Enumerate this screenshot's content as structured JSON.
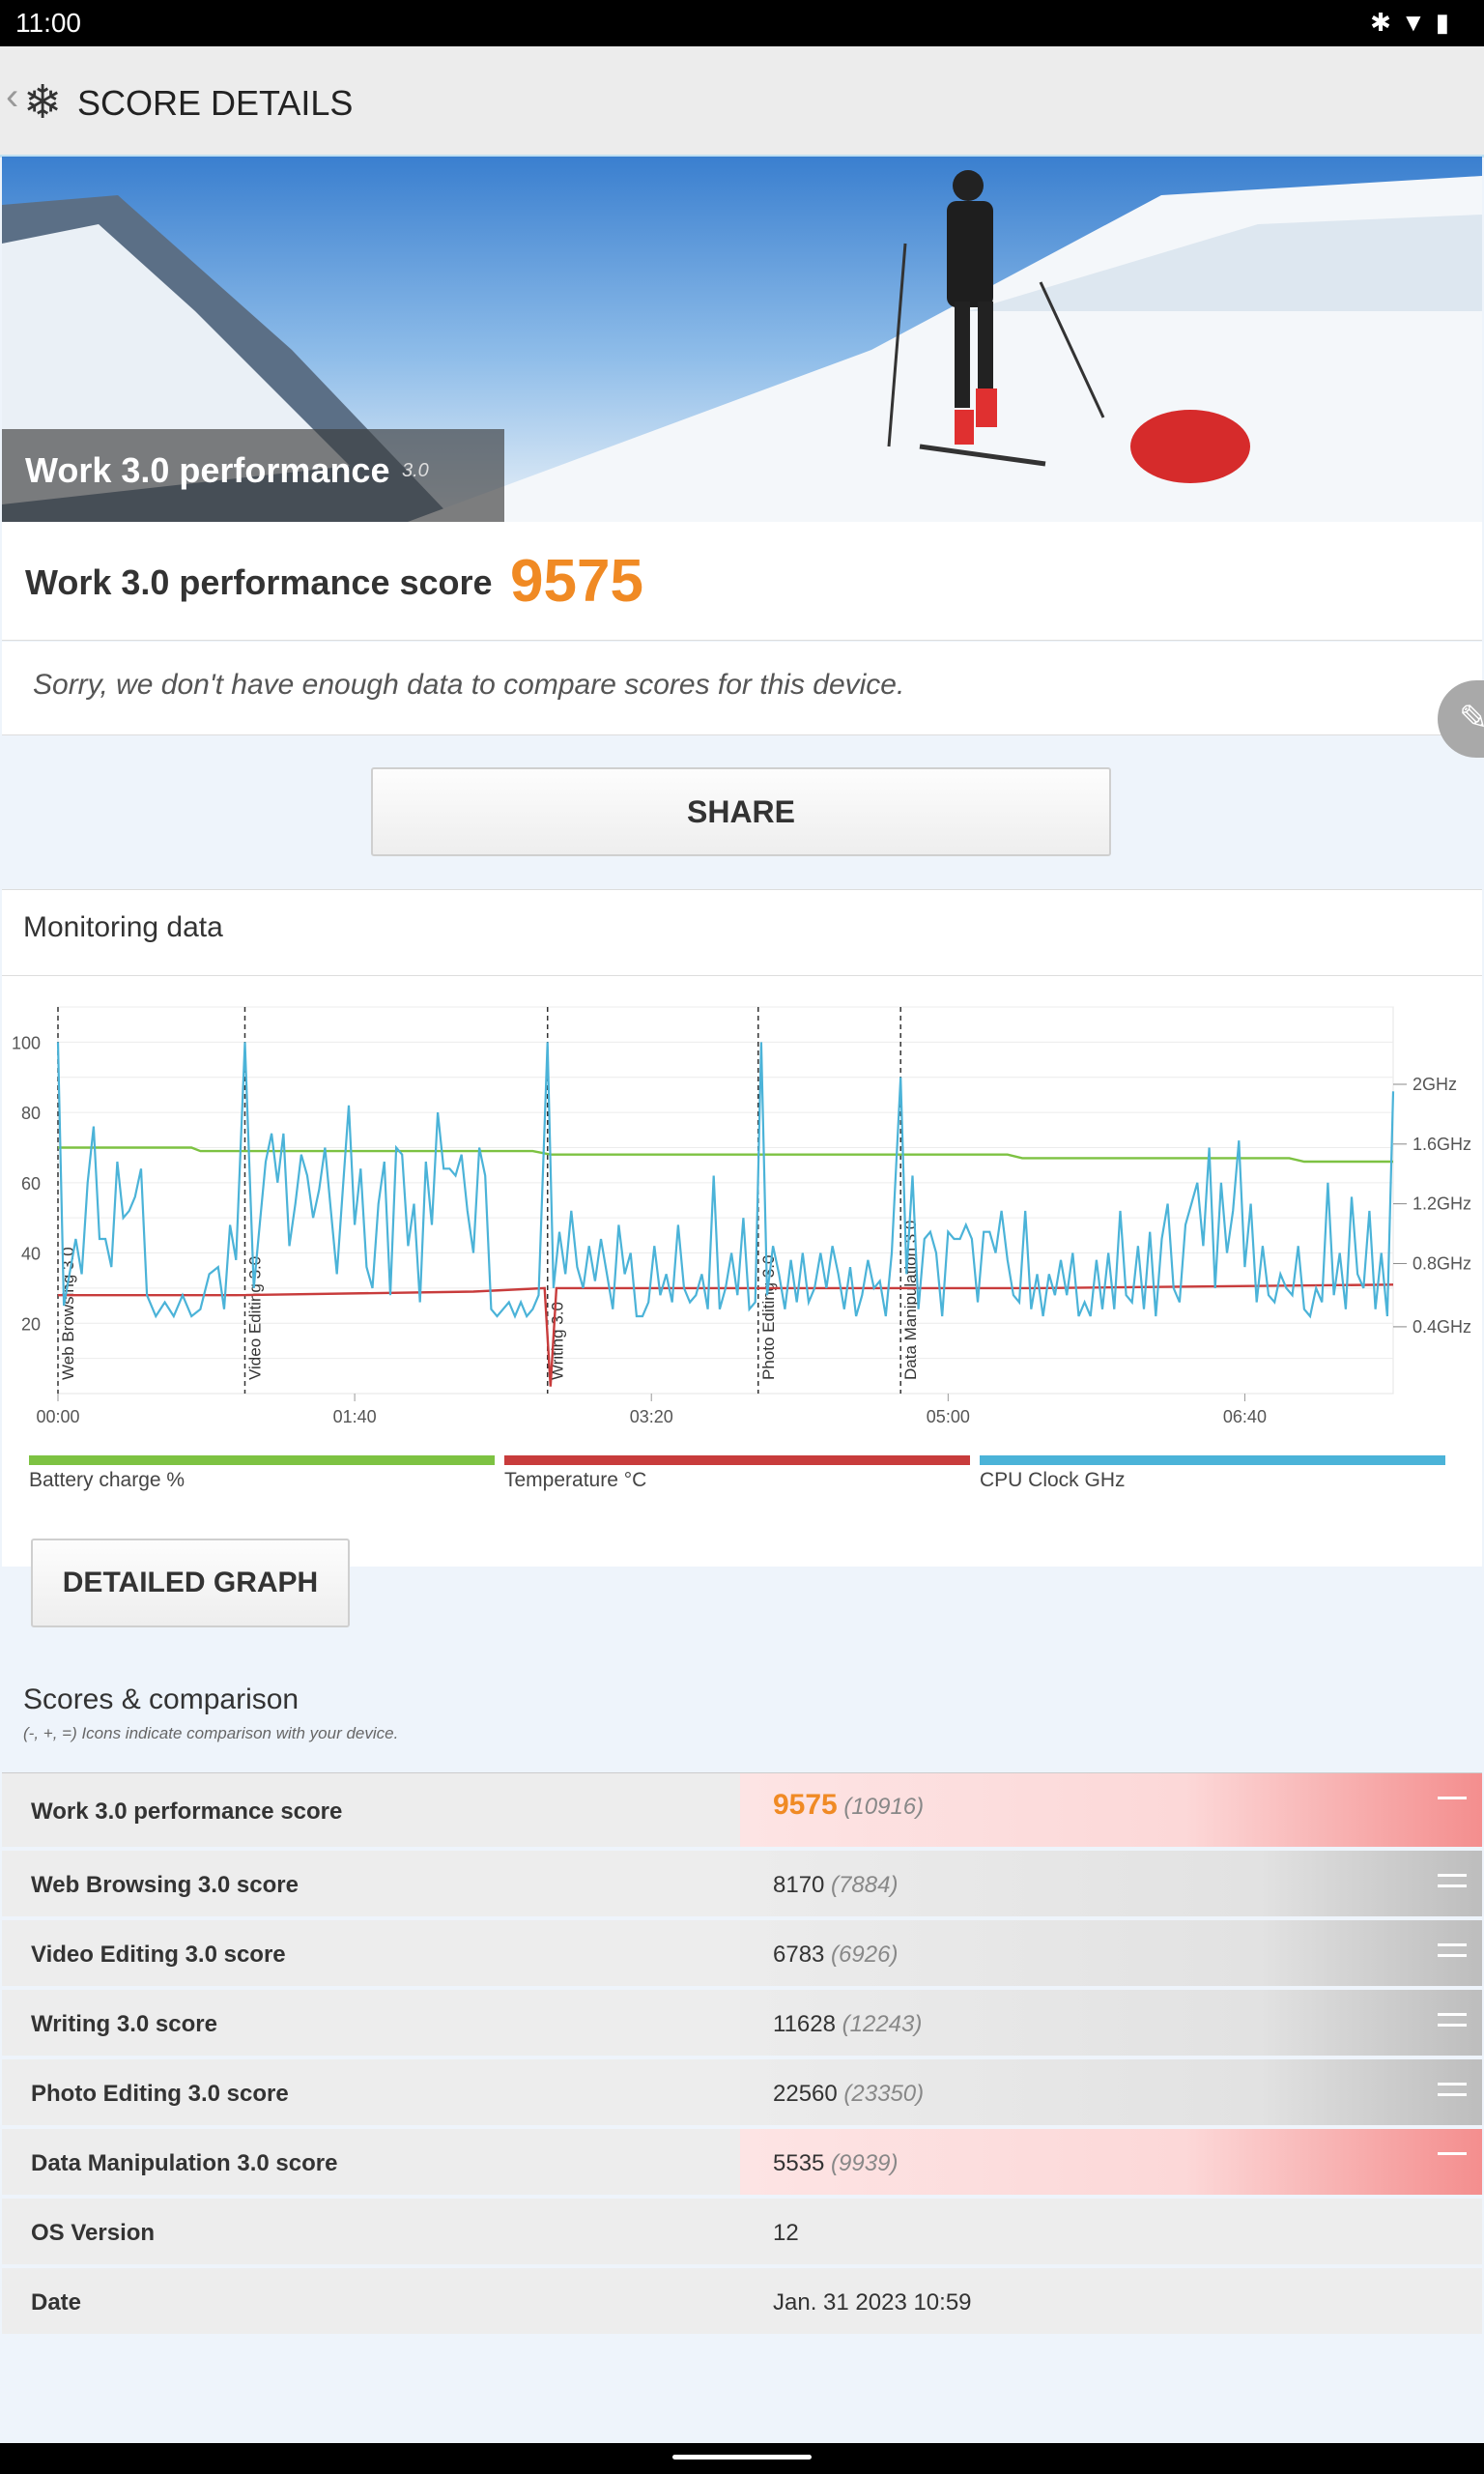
{
  "status": {
    "time": "11:00",
    "icons": [
      "bluetooth-icon",
      "wifi-icon",
      "battery-icon"
    ]
  },
  "appbar": {
    "title": "SCORE DETAILS"
  },
  "hero": {
    "title": "Work 3.0 performance",
    "version": "3.0"
  },
  "score": {
    "label": "Work 3.0 performance score",
    "value": "9575"
  },
  "notice": "Sorry, we don't have enough data to compare scores for this device.",
  "share_label": "SHARE",
  "monitoring": {
    "title": "Monitoring data"
  },
  "chart_data": {
    "type": "line",
    "x_ticks": [
      "00:00",
      "01:40",
      "03:20",
      "05:00",
      "06:40"
    ],
    "y_left_ticks": [
      "100",
      "80",
      "60",
      "40",
      "20"
    ],
    "y_right_ticks": [
      "2GHz",
      "1.6GHz",
      "1.2GHz",
      "0.8GHz",
      "0.4GHz"
    ],
    "phase_markers": [
      {
        "label": "Web Browsing 3.0",
        "t": 0
      },
      {
        "label": "Video Editing 3.0",
        "t": 63
      },
      {
        "label": "Writing 3.0",
        "t": 165
      },
      {
        "label": "Photo Editing 3.0",
        "t": 236
      },
      {
        "label": "Data Manipulation 3.0",
        "t": 284
      }
    ],
    "xlim": [
      0,
      450
    ],
    "ylim": [
      0,
      110
    ],
    "series": [
      {
        "name": "Battery charge %",
        "color": "#7dc242",
        "points": [
          [
            0,
            70
          ],
          [
            45,
            70
          ],
          [
            48,
            69
          ],
          [
            160,
            69
          ],
          [
            166,
            68
          ],
          [
            320,
            68
          ],
          [
            325,
            67
          ],
          [
            415,
            67
          ],
          [
            420,
            66
          ],
          [
            450,
            66
          ]
        ]
      },
      {
        "name": "Temperature °C",
        "color": "#c83c3c",
        "points": [
          [
            0,
            28
          ],
          [
            60,
            28
          ],
          [
            140,
            29
          ],
          [
            164,
            30
          ],
          [
            166,
            2
          ],
          [
            168,
            30
          ],
          [
            250,
            30
          ],
          [
            330,
            30
          ],
          [
            450,
            31
          ]
        ]
      },
      {
        "name": "CPU Clock GHz",
        "color": "#4bb3d8",
        "points": [
          [
            0,
            100
          ],
          [
            2,
            25
          ],
          [
            6,
            44
          ],
          [
            8,
            34
          ],
          [
            10,
            60
          ],
          [
            12,
            76
          ],
          [
            14,
            44
          ],
          [
            16,
            44
          ],
          [
            18,
            36
          ],
          [
            20,
            66
          ],
          [
            22,
            50
          ],
          [
            24,
            52
          ],
          [
            26,
            56
          ],
          [
            28,
            64
          ],
          [
            30,
            28
          ],
          [
            33,
            22
          ],
          [
            36,
            26
          ],
          [
            39,
            22
          ],
          [
            42,
            28
          ],
          [
            45,
            22
          ],
          [
            48,
            24
          ],
          [
            51,
            34
          ],
          [
            54,
            36
          ],
          [
            56,
            24
          ],
          [
            58,
            48
          ],
          [
            60,
            38
          ],
          [
            63,
            100
          ],
          [
            66,
            30
          ],
          [
            68,
            48
          ],
          [
            70,
            66
          ],
          [
            72,
            74
          ],
          [
            74,
            60
          ],
          [
            76,
            74
          ],
          [
            78,
            42
          ],
          [
            80,
            54
          ],
          [
            82,
            68
          ],
          [
            84,
            62
          ],
          [
            86,
            50
          ],
          [
            88,
            58
          ],
          [
            90,
            70
          ],
          [
            92,
            52
          ],
          [
            94,
            34
          ],
          [
            96,
            58
          ],
          [
            98,
            82
          ],
          [
            100,
            48
          ],
          [
            102,
            64
          ],
          [
            104,
            36
          ],
          [
            106,
            30
          ],
          [
            108,
            54
          ],
          [
            110,
            66
          ],
          [
            112,
            28
          ],
          [
            114,
            70
          ],
          [
            116,
            68
          ],
          [
            118,
            42
          ],
          [
            120,
            54
          ],
          [
            122,
            26
          ],
          [
            124,
            66
          ],
          [
            126,
            48
          ],
          [
            128,
            80
          ],
          [
            130,
            64
          ],
          [
            132,
            64
          ],
          [
            134,
            62
          ],
          [
            136,
            68
          ],
          [
            138,
            52
          ],
          [
            140,
            40
          ],
          [
            142,
            70
          ],
          [
            144,
            62
          ],
          [
            146,
            24
          ],
          [
            148,
            22
          ],
          [
            150,
            24
          ],
          [
            152,
            26
          ],
          [
            154,
            22
          ],
          [
            156,
            26
          ],
          [
            158,
            22
          ],
          [
            160,
            24
          ],
          [
            162,
            28
          ],
          [
            165,
            100
          ],
          [
            167,
            30
          ],
          [
            169,
            46
          ],
          [
            171,
            34
          ],
          [
            173,
            52
          ],
          [
            175,
            36
          ],
          [
            177,
            30
          ],
          [
            179,
            42
          ],
          [
            181,
            32
          ],
          [
            183,
            44
          ],
          [
            185,
            34
          ],
          [
            187,
            24
          ],
          [
            189,
            48
          ],
          [
            191,
            34
          ],
          [
            193,
            40
          ],
          [
            195,
            22
          ],
          [
            197,
            22
          ],
          [
            199,
            26
          ],
          [
            201,
            42
          ],
          [
            203,
            28
          ],
          [
            205,
            34
          ],
          [
            207,
            26
          ],
          [
            209,
            48
          ],
          [
            211,
            30
          ],
          [
            213,
            26
          ],
          [
            215,
            28
          ],
          [
            217,
            34
          ],
          [
            219,
            24
          ],
          [
            221,
            62
          ],
          [
            223,
            24
          ],
          [
            225,
            30
          ],
          [
            227,
            40
          ],
          [
            229,
            28
          ],
          [
            231,
            50
          ],
          [
            233,
            24
          ],
          [
            235,
            26
          ],
          [
            237,
            100
          ],
          [
            239,
            28
          ],
          [
            241,
            42
          ],
          [
            243,
            34
          ],
          [
            245,
            24
          ],
          [
            247,
            38
          ],
          [
            249,
            26
          ],
          [
            251,
            40
          ],
          [
            253,
            26
          ],
          [
            255,
            30
          ],
          [
            257,
            40
          ],
          [
            259,
            30
          ],
          [
            261,
            42
          ],
          [
            263,
            34
          ],
          [
            265,
            24
          ],
          [
            267,
            36
          ],
          [
            269,
            22
          ],
          [
            271,
            28
          ],
          [
            273,
            38
          ],
          [
            275,
            30
          ],
          [
            277,
            32
          ],
          [
            279,
            22
          ],
          [
            281,
            40
          ],
          [
            284,
            90
          ],
          [
            286,
            34
          ],
          [
            288,
            62
          ],
          [
            290,
            24
          ],
          [
            292,
            44
          ],
          [
            294,
            46
          ],
          [
            296,
            40
          ],
          [
            298,
            22
          ],
          [
            300,
            46
          ],
          [
            302,
            44
          ],
          [
            304,
            44
          ],
          [
            306,
            48
          ],
          [
            308,
            44
          ],
          [
            310,
            26
          ],
          [
            312,
            46
          ],
          [
            314,
            46
          ],
          [
            316,
            40
          ],
          [
            318,
            52
          ],
          [
            320,
            38
          ],
          [
            322,
            28
          ],
          [
            324,
            26
          ],
          [
            326,
            52
          ],
          [
            328,
            24
          ],
          [
            330,
            34
          ],
          [
            332,
            22
          ],
          [
            334,
            34
          ],
          [
            336,
            28
          ],
          [
            338,
            38
          ],
          [
            340,
            28
          ],
          [
            342,
            40
          ],
          [
            344,
            22
          ],
          [
            346,
            26
          ],
          [
            348,
            22
          ],
          [
            350,
            38
          ],
          [
            352,
            24
          ],
          [
            354,
            40
          ],
          [
            356,
            24
          ],
          [
            358,
            52
          ],
          [
            360,
            28
          ],
          [
            362,
            26
          ],
          [
            364,
            42
          ],
          [
            366,
            24
          ],
          [
            368,
            46
          ],
          [
            370,
            22
          ],
          [
            372,
            44
          ],
          [
            374,
            54
          ],
          [
            376,
            30
          ],
          [
            378,
            26
          ],
          [
            380,
            48
          ],
          [
            382,
            54
          ],
          [
            384,
            60
          ],
          [
            386,
            42
          ],
          [
            388,
            70
          ],
          [
            390,
            30
          ],
          [
            392,
            60
          ],
          [
            394,
            40
          ],
          [
            396,
            52
          ],
          [
            398,
            72
          ],
          [
            400,
            36
          ],
          [
            402,
            54
          ],
          [
            404,
            26
          ],
          [
            406,
            42
          ],
          [
            408,
            28
          ],
          [
            410,
            26
          ],
          [
            412,
            34
          ],
          [
            414,
            30
          ],
          [
            416,
            28
          ],
          [
            418,
            42
          ],
          [
            420,
            24
          ],
          [
            422,
            22
          ],
          [
            424,
            30
          ],
          [
            426,
            26
          ],
          [
            428,
            60
          ],
          [
            430,
            28
          ],
          [
            432,
            40
          ],
          [
            434,
            24
          ],
          [
            436,
            56
          ],
          [
            438,
            34
          ],
          [
            440,
            30
          ],
          [
            442,
            52
          ],
          [
            444,
            24
          ],
          [
            446,
            40
          ],
          [
            448,
            22
          ],
          [
            450,
            86
          ]
        ]
      }
    ]
  },
  "legend": {
    "battery": {
      "label": "Battery charge %",
      "color": "#7dc242"
    },
    "temperature": {
      "label": "Temperature °C",
      "color": "#c83c3c"
    },
    "cpu": {
      "label": "CPU Clock GHz",
      "color": "#4bb3d8"
    }
  },
  "detailed_graph_label": "DETAILED GRAPH",
  "scores": {
    "title": "Scores & comparison",
    "note": "(-, +, =) Icons indicate comparison with your device.",
    "rows": [
      {
        "name": "Work 3.0 performance score",
        "value": "9575",
        "cmp": "(10916)",
        "indicator": "minus",
        "tint": "red"
      },
      {
        "name": "Web Browsing 3.0 score",
        "value": "8170",
        "cmp": "(7884)",
        "indicator": "equal",
        "tint": "gray"
      },
      {
        "name": "Video Editing 3.0 score",
        "value": "6783",
        "cmp": "(6926)",
        "indicator": "equal",
        "tint": "gray"
      },
      {
        "name": "Writing 3.0 score",
        "value": "11628",
        "cmp": "(12243)",
        "indicator": "equal",
        "tint": "gray"
      },
      {
        "name": "Photo Editing 3.0 score",
        "value": "22560",
        "cmp": "(23350)",
        "indicator": "equal",
        "tint": "gray"
      },
      {
        "name": "Data Manipulation 3.0 score",
        "value": "5535",
        "cmp": "(9939)",
        "indicator": "minus",
        "tint": "red"
      },
      {
        "name": "OS Version",
        "value": "12",
        "cmp": "",
        "indicator": "none",
        "tint": "none"
      },
      {
        "name": "Date",
        "value": "Jan. 31 2023 10:59",
        "cmp": "",
        "indicator": "none",
        "tint": "none"
      }
    ]
  }
}
